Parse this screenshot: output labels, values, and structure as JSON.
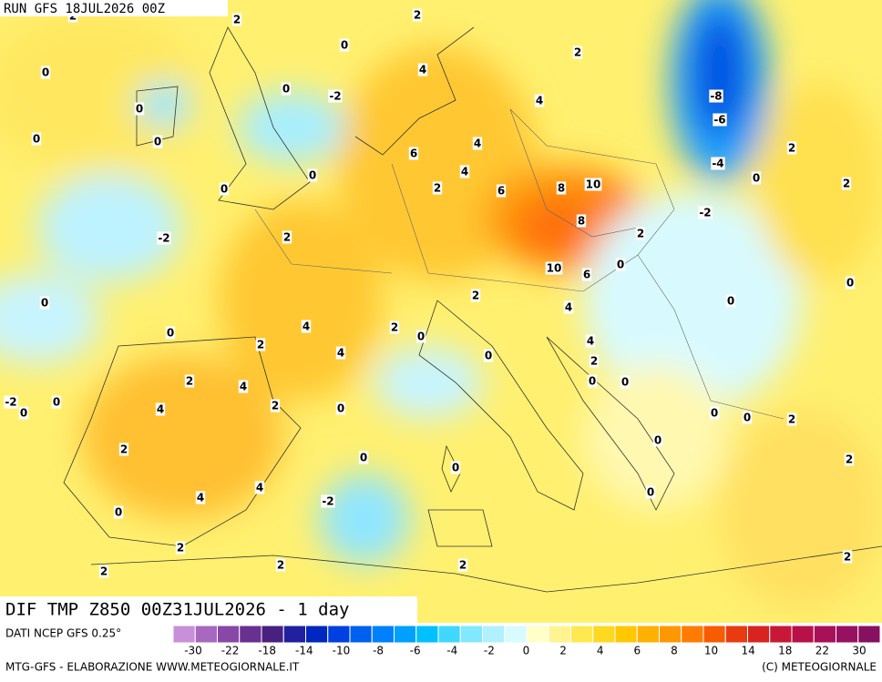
{
  "header": {
    "run": "RUN GFS 18JUL2026 00Z"
  },
  "map": {
    "title": "DIF TMP Z850 00Z31JUL2026 - 1 day",
    "contour_labels": [
      2,
      2,
      0,
      0,
      4,
      2,
      0,
      -2,
      0,
      4,
      -8,
      0,
      0,
      4,
      -6,
      2,
      6,
      -4,
      4,
      0,
      0,
      2,
      0,
      2,
      6,
      8,
      10,
      -2,
      -2,
      2,
      8,
      2,
      0,
      10,
      6,
      0,
      0,
      2,
      0,
      4,
      4,
      2,
      0,
      0,
      2,
      4,
      4,
      0,
      2,
      2,
      4,
      0,
      0,
      -2,
      0,
      0,
      2,
      0,
      4,
      0,
      0,
      2,
      0,
      2,
      0,
      0,
      2,
      4,
      4,
      -2,
      0,
      0,
      2,
      2,
      2,
      2,
      2,
      2
    ]
  },
  "colorbar": {
    "source": "DATI NCEP GFS 0.25°",
    "ticks": [
      -30,
      -22,
      -18,
      -14,
      -10,
      -8,
      -6,
      -4,
      -2,
      0,
      2,
      4,
      6,
      8,
      10,
      14,
      18,
      22,
      30
    ],
    "colors": [
      "#c890d8",
      "#a868c0",
      "#8848a8",
      "#683090",
      "#482080",
      "#2020a0",
      "#0028c0",
      "#0040e0",
      "#0060f0",
      "#0080ff",
      "#00a0ff",
      "#00c0ff",
      "#40d8ff",
      "#80e8ff",
      "#b0f0ff",
      "#d8fbff",
      "#ffffc8",
      "#fff490",
      "#ffe850",
      "#ffd820",
      "#ffc800",
      "#ffb000",
      "#ff9800",
      "#ff7c00",
      "#f85c00",
      "#e83c10",
      "#d82420",
      "#c81838",
      "#b81048",
      "#a81058",
      "#981060",
      "#881060"
    ]
  },
  "footer": {
    "left": "MTG-GFS - ELABORAZIONE WWW.METEOGIORNALE.IT",
    "right": "(C) METEOGIORNALE"
  }
}
